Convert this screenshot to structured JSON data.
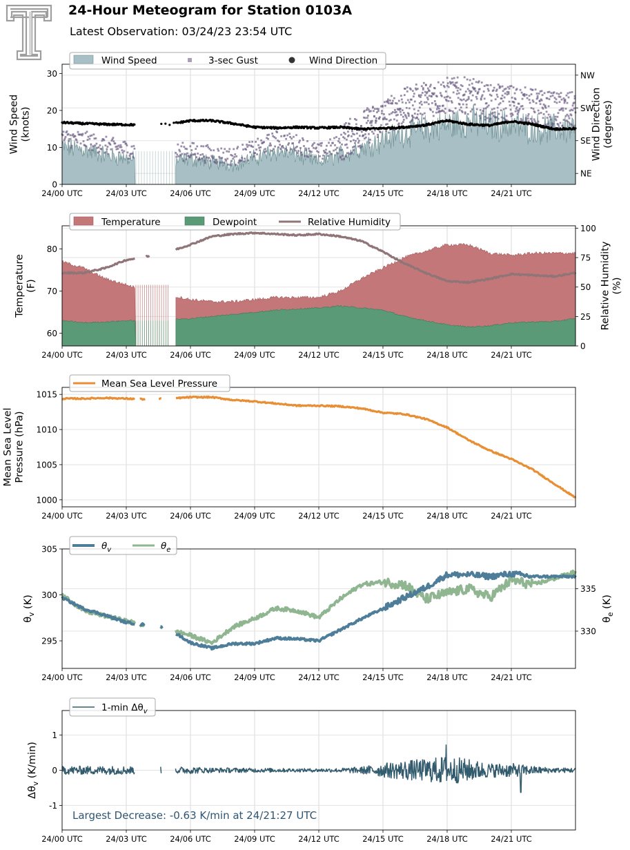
{
  "header": {
    "title": "24-Hour Meteogram for Station 0103A",
    "subtitle": "Latest Observation: 03/24/23 23:54 UTC"
  },
  "colors": {
    "wind_speed": "#a9bfc6",
    "wind_speed_line": "#6f9294",
    "gust": "#6f5f86",
    "wind_direction": "#000000",
    "temperature": "#c47779",
    "dewpoint": "#5a9a76",
    "relative_humidity": "#8f7577",
    "rh_overlap": "#6e3d3f",
    "pressure": "#e88f35",
    "theta_v": "#4d7d98",
    "theta_e": "#8fb690",
    "delta_theta_v": "#335b6e",
    "annotation": "#2f5572"
  },
  "chart_data": [
    {
      "type": "area",
      "x_axis": "hour",
      "xlim": [
        0,
        24
      ],
      "xticks": [
        0,
        3,
        6,
        9,
        12,
        15,
        18,
        21
      ],
      "xtick_labels": [
        "24/00 UTC",
        "24/03 UTC",
        "24/06 UTC",
        "24/09 UTC",
        "24/12 UTC",
        "24/15 UTC",
        "24/18 UTC",
        "24/21 UTC"
      ],
      "ylabel": "Wind Speed\n(knots)",
      "ylim": [
        0,
        32.5
      ],
      "yticks": [
        0,
        10,
        20,
        30
      ],
      "y2label": "Wind Direction\n(degrees)",
      "y2lim": [
        15,
        345
      ],
      "y2ticks": [
        45,
        135,
        225,
        315
      ],
      "y2tick_labels": [
        "NE",
        "SE",
        "SW",
        "NW"
      ],
      "legend": {
        "entries": [
          "Wind Speed",
          "3-sec Gust",
          "Wind Direction"
        ],
        "placement": "top-left"
      },
      "grid": true,
      "gap_hours": [
        3.4,
        5.3
      ],
      "series": [
        {
          "name": "Wind Speed",
          "x": [
            0,
            1,
            2,
            3,
            4,
            5,
            6,
            7,
            8,
            9,
            10,
            11,
            12,
            13,
            14,
            15,
            16,
            17,
            18,
            19,
            20,
            21,
            22,
            23,
            24
          ],
          "values": [
            10,
            9.5,
            8,
            7,
            6,
            6,
            7,
            6,
            5.5,
            7,
            9,
            8,
            6,
            8,
            10,
            12,
            14,
            15,
            16,
            17,
            16,
            16,
            15,
            15,
            15
          ]
        },
        {
          "name": "3-sec Gust",
          "x": [
            0,
            1,
            2,
            3,
            4,
            5,
            6,
            7,
            8,
            9,
            10,
            11,
            12,
            13,
            14,
            15,
            16,
            17,
            18,
            19,
            20,
            21,
            22,
            23,
            24
          ],
          "values": [
            12.5,
            12,
            10.5,
            9.5,
            8.5,
            8.5,
            9,
            8,
            7.5,
            9.5,
            12,
            11,
            8.5,
            11,
            15,
            18,
            21,
            23,
            24,
            24,
            22,
            22,
            21,
            20,
            20
          ]
        },
        {
          "name": "Wind Direction",
          "x": [
            0,
            1,
            2,
            3,
            4,
            5,
            6,
            7,
            8,
            9,
            10,
            11,
            12,
            13,
            14,
            15,
            16,
            17,
            18,
            19,
            20,
            21,
            22,
            23,
            24
          ],
          "values": [
            185,
            182,
            180,
            179,
            178,
            180,
            190,
            190,
            182,
            172,
            170,
            172,
            170,
            172,
            167,
            169,
            172,
            178,
            190,
            180,
            177,
            188,
            180,
            167,
            168
          ]
        }
      ]
    },
    {
      "type": "area",
      "x_axis": "hour",
      "xlim": [
        0,
        24
      ],
      "xticks": [
        0,
        3,
        6,
        9,
        12,
        15,
        18,
        21
      ],
      "xtick_labels": [
        "24/00 UTC",
        "24/03 UTC",
        "24/06 UTC",
        "24/09 UTC",
        "24/12 UTC",
        "24/15 UTC",
        "24/18 UTC",
        "24/21 UTC"
      ],
      "ylabel": "Temperature\n(F)",
      "ylim": [
        57,
        85.5
      ],
      "yticks": [
        60,
        70,
        80
      ],
      "y2label": "Relative Humidity\n(%)",
      "y2lim": [
        0,
        102
      ],
      "y2ticks": [
        0,
        25,
        50,
        75,
        100
      ],
      "legend": {
        "entries": [
          "Temperature",
          "Dewpoint",
          "Relative Humidity"
        ],
        "placement": "top-left"
      },
      "grid": true,
      "gap_hours": [
        3.4,
        5.3
      ],
      "series": [
        {
          "name": "Temperature",
          "x": [
            0,
            1,
            2,
            3,
            4,
            5,
            6,
            7,
            8,
            9,
            10,
            11,
            12,
            13,
            14,
            15,
            16,
            17,
            18,
            19,
            20,
            21,
            22,
            23,
            24
          ],
          "values": [
            77,
            75.5,
            73,
            71.5,
            70,
            69,
            68,
            67.5,
            67.5,
            68,
            68.5,
            68.5,
            68.5,
            70,
            73,
            75.5,
            78,
            79.5,
            81,
            81,
            79,
            78.5,
            79,
            79,
            79
          ]
        },
        {
          "name": "Dewpoint",
          "x": [
            0,
            1,
            2,
            3,
            4,
            5,
            6,
            7,
            8,
            9,
            10,
            11,
            12,
            13,
            14,
            15,
            16,
            17,
            18,
            19,
            20,
            21,
            22,
            23,
            24
          ],
          "values": [
            63,
            62.5,
            62.7,
            63,
            63,
            63.2,
            63.5,
            64,
            64.5,
            65,
            65.5,
            65.8,
            66,
            66.5,
            66,
            65.5,
            64,
            63,
            62,
            61.5,
            61.8,
            62.5,
            62.7,
            62.8,
            63.5
          ]
        },
        {
          "name": "Relative Humidity",
          "x": [
            0,
            1,
            2,
            3,
            4,
            5,
            6,
            7,
            8,
            9,
            10,
            11,
            12,
            13,
            14,
            15,
            16,
            17,
            18,
            19,
            20,
            21,
            22,
            23,
            24
          ],
          "values": [
            62,
            62,
            66,
            73,
            76,
            80,
            86,
            93,
            95,
            96,
            95,
            94,
            95,
            93,
            89,
            80,
            70,
            62,
            55,
            54,
            57,
            61,
            60,
            59,
            62
          ]
        }
      ]
    },
    {
      "type": "line",
      "x_axis": "hour",
      "xlim": [
        0,
        24
      ],
      "xticks": [
        0,
        3,
        6,
        9,
        12,
        15,
        18,
        21
      ],
      "xtick_labels": [
        "24/00 UTC",
        "24/03 UTC",
        "24/06 UTC",
        "24/09 UTC",
        "24/12 UTC",
        "24/15 UTC",
        "24/18 UTC",
        "24/21 UTC"
      ],
      "ylabel": "Mean Sea Level\nPressure (hPa)",
      "ylim": [
        999,
        1016
      ],
      "yticks": [
        1000,
        1005,
        1010,
        1015
      ],
      "legend": {
        "entries": [
          "Mean Sea Level Pressure"
        ],
        "placement": "top-left"
      },
      "grid": true,
      "gap_hours": [
        3.4,
        5.3
      ],
      "series": [
        {
          "name": "Mean Sea Level Pressure",
          "x": [
            0,
            1,
            2,
            3,
            4,
            5,
            6,
            7,
            8,
            9,
            10,
            11,
            12,
            13,
            14,
            15,
            16,
            17,
            18,
            19,
            20,
            21,
            22,
            23,
            24
          ],
          "values": [
            1014.4,
            1014.4,
            1014.5,
            1014.4,
            1014.3,
            1014.4,
            1014.6,
            1014.6,
            1014.2,
            1014,
            1013.7,
            1013.4,
            1013.4,
            1013.3,
            1013,
            1012.4,
            1012.2,
            1011.5,
            1010.3,
            1008.5,
            1007,
            1005.8,
            1004.3,
            1002.3,
            1000.3
          ]
        }
      ]
    },
    {
      "type": "line",
      "x_axis": "hour",
      "xlim": [
        0,
        24
      ],
      "xticks": [
        0,
        3,
        6,
        9,
        12,
        15,
        18,
        21
      ],
      "xtick_labels": [
        "24/00 UTC",
        "24/03 UTC",
        "24/06 UTC",
        "24/09 UTC",
        "24/12 UTC",
        "24/15 UTC",
        "24/18 UTC",
        "24/21 UTC"
      ],
      "ylabel": "θv (K)",
      "ylim": [
        292,
        305
      ],
      "yticks": [
        295,
        300,
        305
      ],
      "y2label": "θe (K)",
      "y2lim": [
        325.6,
        339.7
      ],
      "y2ticks": [
        330,
        335
      ],
      "legend": {
        "entries": [
          "θv",
          "θe"
        ],
        "placement": "top-left"
      },
      "grid": true,
      "gap_hours": [
        3.4,
        5.3
      ],
      "series": [
        {
          "name": "θv",
          "x": [
            0,
            1,
            2,
            3,
            4,
            5,
            6,
            7,
            8,
            9,
            10,
            11,
            12,
            13,
            14,
            15,
            16,
            17,
            18,
            19,
            20,
            21,
            22,
            23,
            24
          ],
          "values": [
            299.7,
            298.5,
            297.8,
            297,
            296.7,
            296.3,
            294.8,
            294.2,
            294.7,
            294.7,
            295.3,
            295.2,
            295,
            296.2,
            297.4,
            298.5,
            299.7,
            300.8,
            302.2,
            302.2,
            302,
            302.3,
            302,
            302,
            302
          ]
        },
        {
          "name": "θe",
          "x": [
            0,
            1,
            2,
            3,
            4,
            5,
            6,
            7,
            8,
            9,
            10,
            11,
            12,
            13,
            14,
            15,
            16,
            17,
            18,
            19,
            20,
            21,
            22,
            23,
            24
          ],
          "values": [
            334.3,
            332.4,
            331.8,
            331.2,
            330.6,
            330.2,
            329.5,
            328.6,
            330.5,
            331.5,
            332.7,
            332.4,
            331.6,
            333.8,
            335.5,
            335.8,
            335.5,
            333.8,
            334.5,
            335,
            334,
            336,
            335.5,
            336.2,
            337
          ]
        }
      ]
    },
    {
      "type": "line",
      "x_axis": "hour",
      "xlim": [
        0,
        24
      ],
      "xticks": [
        0,
        3,
        6,
        9,
        12,
        15,
        18,
        21
      ],
      "xtick_labels": [
        "24/00 UTC",
        "24/03 UTC",
        "24/06 UTC",
        "24/09 UTC",
        "24/12 UTC",
        "24/15 UTC",
        "24/18 UTC",
        "24/21 UTC"
      ],
      "ylabel": "Δθv (K/min)",
      "ylim": [
        -1.7,
        1.7
      ],
      "yticks": [
        -1,
        0,
        1
      ],
      "legend": {
        "entries": [
          "1-min Δθv"
        ],
        "placement": "top-left"
      },
      "grid": true,
      "gap_hours": [
        3.4,
        5.3
      ],
      "annotation": "Largest Decrease: -0.63 K/min at 24/21:27 UTC",
      "series": [
        {
          "name": "1-min Δθv",
          "x": [
            0,
            1,
            2,
            3,
            4,
            5,
            6,
            7,
            8,
            9,
            10,
            11,
            12,
            13,
            14,
            15,
            16,
            17,
            18,
            19,
            20,
            21,
            22,
            23,
            24
          ],
          "amplitude": [
            0.12,
            0.12,
            0.12,
            0.12,
            0.1,
            0.1,
            0.1,
            0.07,
            0.07,
            0.06,
            0.06,
            0.05,
            0.05,
            0.06,
            0.1,
            0.2,
            0.28,
            0.32,
            0.42,
            0.32,
            0.2,
            0.2,
            0.12,
            0.07,
            0.07
          ]
        }
      ]
    }
  ]
}
